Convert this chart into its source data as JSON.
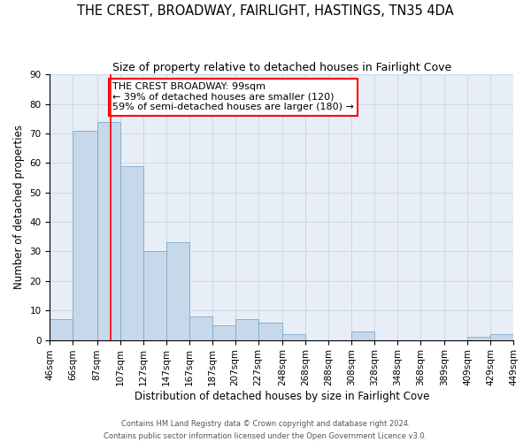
{
  "title": "THE CREST, BROADWAY, FAIRLIGHT, HASTINGS, TN35 4DA",
  "subtitle": "Size of property relative to detached houses in Fairlight Cove",
  "xlabel": "Distribution of detached houses by size in Fairlight Cove",
  "ylabel": "Number of detached properties",
  "footer_line1": "Contains HM Land Registry data © Crown copyright and database right 2024.",
  "footer_line2": "Contains public sector information licensed under the Open Government Licence v3.0.",
  "bar_labels": [
    "46sqm",
    "66sqm",
    "87sqm",
    "107sqm",
    "127sqm",
    "147sqm",
    "167sqm",
    "187sqm",
    "207sqm",
    "227sqm",
    "248sqm",
    "268sqm",
    "288sqm",
    "308sqm",
    "328sqm",
    "348sqm",
    "368sqm",
    "389sqm",
    "409sqm",
    "429sqm",
    "449sqm"
  ],
  "bar_values": [
    7,
    71,
    74,
    59,
    30,
    33,
    8,
    5,
    7,
    6,
    2,
    0,
    0,
    3,
    0,
    0,
    0,
    0,
    1,
    2,
    0
  ],
  "bar_color": "#c8d8eb",
  "bar_edge_color": "#7aaac8",
  "grid_color": "#ccd8e8",
  "background_color": "#e8eef6",
  "ylim": [
    0,
    90
  ],
  "yticks": [
    0,
    10,
    20,
    30,
    40,
    50,
    60,
    70,
    80,
    90
  ],
  "vline_x": 99,
  "annotation_title": "THE CREST BROADWAY: 99sqm",
  "annotation_line2": "← 39% of detached houses are smaller (120)",
  "annotation_line3": "59% of semi-detached houses are larger (180) →",
  "title_fontsize": 10.5,
  "subtitle_fontsize": 9,
  "xlabel_fontsize": 8.5,
  "ylabel_fontsize": 8.5,
  "tick_fontsize": 7.5,
  "annotation_fontsize": 8,
  "footer_fontsize": 6
}
